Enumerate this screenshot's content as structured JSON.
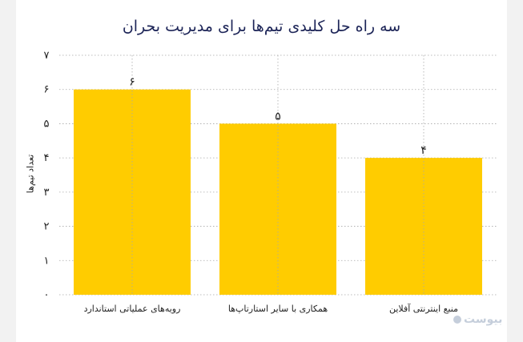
{
  "chart_data": {
    "type": "bar",
    "title": "سه راه حل کلیدی تیم‌ها برای مدیریت بحران",
    "ylabel": "تعداد تیم‌ها",
    "xlabel": "",
    "categories": [
      "رویه‌های عملیاتی استاندارد",
      "همکاری با سایر استارتاپ‌ها",
      "منبع اینترنتی آفلاین"
    ],
    "values": [
      6,
      5,
      4
    ],
    "value_labels": [
      "۶",
      "۵",
      "۴"
    ],
    "ylim": [
      0,
      7
    ],
    "yticks": [
      0,
      1,
      2,
      3,
      4,
      5,
      6,
      7
    ],
    "ytick_labels": [
      "۰",
      "۱",
      "۲",
      "۳",
      "۴",
      "۵",
      "۶",
      "۷"
    ],
    "grid": true,
    "bar_color": "#ffcc00",
    "gridline_color": "#a8a8a8"
  },
  "watermark": {
    "text": "بیوست"
  }
}
